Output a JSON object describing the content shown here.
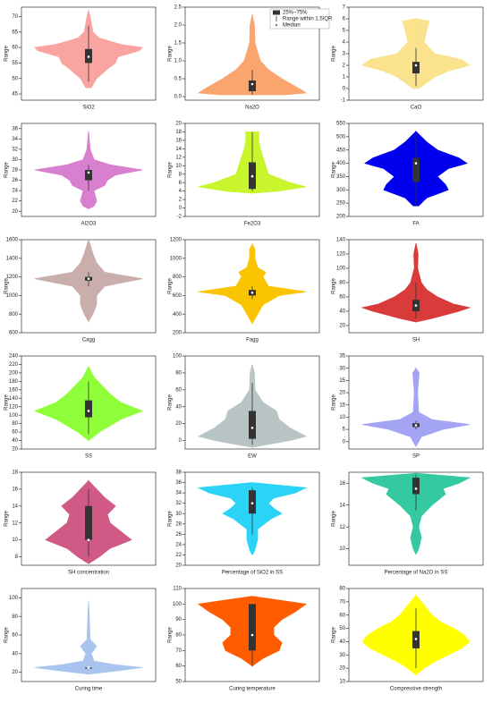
{
  "chart_data": [
    {
      "type": "violin",
      "x_label": "SiO2",
      "y_label": "Range",
      "color": "#f9a4a0",
      "ylim": [
        43,
        73
      ],
      "yticks": [
        45,
        50,
        55,
        60,
        65,
        70
      ],
      "box": {
        "q1": 55,
        "q3": 59.5,
        "median": 57,
        "whisker_low": 49,
        "whisker_high": 67
      },
      "density_y": [
        47,
        50,
        53,
        55,
        57,
        59,
        60,
        61,
        63,
        65,
        70,
        72
      ],
      "density": [
        0.05,
        0.15,
        0.35,
        0.5,
        0.55,
        0.95,
        1,
        0.6,
        0.2,
        0.08,
        0.03,
        0
      ]
    },
    {
      "type": "violin",
      "x_label": "Na2O",
      "y_label": "Range",
      "color": "#fba56e",
      "ylim": [
        -0.1,
        2.5
      ],
      "yticks": [
        {
          "value": 0,
          "label": "0.0"
        },
        0.5,
        {
          "value": 1,
          "label": "1.0"
        },
        1.5,
        {
          "value": 2,
          "label": "2.0"
        },
        2.5
      ],
      "box": {
        "q1": 0.15,
        "q3": 0.45,
        "median": 0.35,
        "whisker_low": 0.05,
        "whisker_high": 0.75
      },
      "density_y": [
        0.05,
        0.1,
        0.2,
        0.5,
        0.75,
        1,
        1.5,
        2,
        2.3
      ],
      "density": [
        0.6,
        1,
        0.9,
        0.55,
        0.3,
        0.15,
        0.05,
        0.04,
        0
      ],
      "legend": [
        "25%~75%",
        "Range within 1.5IQR",
        "Median"
      ]
    },
    {
      "type": "violin",
      "x_label": "CaO",
      "y_label": "Range",
      "color": "#fbe28c",
      "ylim": [
        -1,
        7
      ],
      "yticks": [
        -1,
        0,
        1,
        2,
        3,
        4,
        5,
        6,
        7
      ],
      "box": {
        "q1": 1.3,
        "q3": 2.3,
        "median": 2,
        "whisker_low": 0.2,
        "whisker_high": 3.5
      },
      "density_y": [
        0,
        0.5,
        1,
        1.5,
        2,
        2.5,
        3,
        4,
        5,
        5.8,
        6
      ],
      "density": [
        0.05,
        0.2,
        0.35,
        0.6,
        1,
        0.85,
        0.35,
        0.15,
        0.2,
        0.25,
        0
      ]
    },
    {
      "type": "violin",
      "x_label": "Al2O3",
      "y_label": "Range",
      "color": "#d97fd0",
      "ylim": [
        19,
        37
      ],
      "yticks": [
        20,
        22,
        24,
        26,
        28,
        30,
        32,
        34,
        36
      ],
      "box": {
        "q1": 26,
        "q3": 28,
        "median": 27.5,
        "whisker_low": 24,
        "whisker_high": 29
      },
      "density_y": [
        20.5,
        21,
        22,
        24,
        25,
        26,
        27,
        28,
        29,
        30,
        32,
        35.5
      ],
      "density": [
        0,
        0.1,
        0.15,
        0.1,
        0.3,
        0.35,
        0.5,
        1,
        0.4,
        0.1,
        0.03,
        0
      ]
    },
    {
      "type": "violin",
      "x_label": "Fe2O3",
      "y_label": "Range",
      "color": "#c8f52b",
      "ylim": [
        -2,
        20
      ],
      "yticks": [
        -2,
        0,
        2,
        4,
        6,
        8,
        10,
        12,
        14,
        16,
        18,
        20
      ],
      "box": {
        "q1": 4.5,
        "q3": 10.8,
        "median": 7.5,
        "whisker_low": 4,
        "whisker_high": 18
      },
      "density_y": [
        3.5,
        4,
        5,
        6,
        8,
        10,
        12,
        14,
        16,
        18
      ],
      "density": [
        0,
        0.5,
        1,
        0.7,
        0.3,
        0.25,
        0.2,
        0.15,
        0.12,
        0.12
      ]
    },
    {
      "type": "violin",
      "x_label": "FA",
      "y_label": "Range",
      "color": "#0000ee",
      "ylim": [
        200,
        550
      ],
      "yticks": [
        200,
        250,
        300,
        350,
        400,
        450,
        500,
        550
      ],
      "box": {
        "q1": 330,
        "q3": 420,
        "median": 400,
        "whisker_low": 240,
        "whisker_high": 510
      },
      "density_y": [
        240,
        270,
        300,
        320,
        350,
        380,
        400,
        420,
        450,
        480,
        510,
        520
      ],
      "density": [
        0.05,
        0.2,
        0.6,
        0.55,
        0.4,
        0.6,
        0.95,
        0.8,
        0.4,
        0.2,
        0.05,
        0
      ]
    },
    {
      "type": "violin",
      "x_label": "Cagg",
      "y_label": "Range",
      "color": "#c9aeab",
      "ylim": [
        600,
        1600
      ],
      "yticks": [
        600,
        800,
        1000,
        1200,
        1400,
        1600
      ],
      "box": {
        "q1": 1160,
        "q3": 1200,
        "median": 1180,
        "whisker_low": 1100,
        "whisker_high": 1250
      },
      "density_y": [
        720,
        800,
        900,
        1000,
        1100,
        1180,
        1250,
        1350,
        1450,
        1600
      ],
      "density": [
        0,
        0.08,
        0.15,
        0.15,
        0.3,
        1,
        0.3,
        0.15,
        0.08,
        0
      ]
    },
    {
      "type": "violin",
      "x_label": "Fagg",
      "y_label": "Range",
      "color": "#fbc400",
      "ylim": [
        200,
        1200
      ],
      "yticks": [
        200,
        400,
        600,
        800,
        1000,
        1200
      ],
      "box": {
        "q1": 600,
        "q3": 660,
        "median": 630,
        "whisker_low": 560,
        "whisker_high": 700
      },
      "density_y": [
        300,
        400,
        500,
        600,
        640,
        700,
        800,
        850,
        900,
        1000,
        1100,
        1150
      ],
      "density": [
        0,
        0.1,
        0.2,
        0.5,
        1,
        0.3,
        0.2,
        0.25,
        0.1,
        0.05,
        0.05,
        0
      ]
    },
    {
      "type": "violin",
      "x_label": "SH",
      "y_label": "Range",
      "color": "#d93b3b",
      "ylim": [
        10,
        140
      ],
      "yticks": [
        20,
        40,
        60,
        80,
        100,
        120,
        140
      ],
      "box": {
        "q1": 40,
        "q3": 56,
        "median": 48,
        "whisker_low": 30,
        "whisker_high": 80
      },
      "density_y": [
        25,
        30,
        40,
        45,
        50,
        60,
        70,
        80,
        100,
        120,
        135
      ],
      "density": [
        0,
        0.3,
        0.8,
        1,
        0.7,
        0.4,
        0.2,
        0.1,
        0.03,
        0.04,
        0
      ]
    },
    {
      "type": "violin",
      "x_label": "SS",
      "y_label": "Range",
      "color": "#8fff3a",
      "ylim": [
        20,
        240
      ],
      "yticks": [
        20,
        40,
        60,
        80,
        100,
        120,
        140,
        160,
        180,
        200,
        220,
        240
      ],
      "box": {
        "q1": 95,
        "q3": 135,
        "median": 110,
        "whisker_low": 55,
        "whisker_high": 180
      },
      "density_y": [
        40,
        60,
        90,
        110,
        130,
        150,
        170,
        190,
        215
      ],
      "density": [
        0,
        0.2,
        0.6,
        1,
        0.6,
        0.4,
        0.25,
        0.1,
        0
      ]
    },
    {
      "type": "violin",
      "x_label": "EW",
      "y_label": "Range",
      "color": "#b9c4c4",
      "ylim": [
        -10,
        100
      ],
      "yticks": [
        0,
        20,
        40,
        60,
        80,
        100
      ],
      "box": {
        "q1": 2,
        "q3": 35,
        "median": 15,
        "whisker_low": -5,
        "whisker_high": 68
      },
      "density_y": [
        -8,
        0,
        5,
        15,
        25,
        35,
        45,
        60,
        80,
        90
      ],
      "density": [
        0,
        0.7,
        1,
        0.7,
        0.5,
        0.45,
        0.2,
        0.05,
        0.04,
        0
      ]
    },
    {
      "type": "violin",
      "x_label": "SP",
      "y_label": "Range",
      "color": "#a4a4f4",
      "ylim": [
        -3,
        35
      ],
      "yticks": [
        0,
        5,
        10,
        15,
        20,
        25,
        30,
        35
      ],
      "box": {
        "q1": 6,
        "q3": 7.5,
        "median": 6.7,
        "whisker_low": 5,
        "whisker_high": 8.5
      },
      "density_y": [
        -2,
        2,
        5,
        7,
        9,
        12,
        20,
        28,
        30
      ],
      "density": [
        0,
        0.1,
        0.5,
        1,
        0.3,
        0.05,
        0.03,
        0.06,
        0
      ]
    },
    {
      "type": "violin",
      "x_label": "SH concentration",
      "y_label": "Range",
      "color": "#d05a85",
      "ylim": [
        7,
        18
      ],
      "yticks": [
        8,
        10,
        12,
        14,
        16,
        18
      ],
      "box": {
        "q1": 10,
        "q3": 14,
        "median": 10,
        "whisker_low": 8,
        "whisker_high": 16
      },
      "density_y": [
        7.2,
        8,
        9,
        10,
        11,
        12,
        13,
        14,
        15,
        16,
        17
      ],
      "density": [
        0,
        0.2,
        0.4,
        0.8,
        0.6,
        0.4,
        0.35,
        0.5,
        0.3,
        0.15,
        0
      ]
    },
    {
      "type": "violin",
      "x_label": "Percentage of SiO2 in SS",
      "y_label": "Range",
      "color": "#2bd4f7",
      "ylim": [
        20,
        38
      ],
      "yticks": [
        20,
        22,
        24,
        26,
        28,
        30,
        32,
        34,
        36,
        38
      ],
      "box": {
        "q1": 30,
        "q3": 34.5,
        "median": 32,
        "whisker_low": 26,
        "whisker_high": 35
      },
      "density_y": [
        22,
        23,
        25,
        27,
        29,
        30,
        31,
        32,
        33,
        34,
        35,
        36
      ],
      "density": [
        0,
        0.05,
        0.1,
        0.1,
        0.35,
        0.55,
        0.4,
        0.3,
        0.4,
        0.8,
        1,
        0
      ]
    },
    {
      "type": "violin",
      "x_label": "Percentage of Na2O in SS",
      "y_label": "Range",
      "color": "#34c9a0",
      "ylim": [
        8.5,
        17
      ],
      "yticks": [
        10,
        12,
        14,
        16
      ],
      "box": {
        "q1": 15,
        "q3": 16.5,
        "median": 15.5,
        "whisker_low": 13.5,
        "whisker_high": 16.8
      },
      "density_y": [
        9.5,
        10,
        11,
        12,
        13,
        14,
        15,
        15.5,
        16,
        16.5,
        16.9
      ],
      "density": [
        0,
        0.05,
        0.1,
        0.05,
        0.1,
        0.3,
        0.55,
        0.5,
        0.8,
        1,
        0
      ]
    },
    {
      "type": "violin",
      "x_label": "Curing time",
      "y_label": "Range",
      "color": "#a8c4ef",
      "ylim": [
        10,
        110
      ],
      "yticks": [
        20,
        40,
        60,
        80,
        100
      ],
      "box": {
        "q1": 24,
        "q3": 25,
        "median": 25,
        "whisker_low": 24,
        "whisker_high": 25
      },
      "density_y": [
        18,
        22,
        25,
        28,
        32,
        40,
        48,
        55,
        70,
        97
      ],
      "density": [
        0,
        0.6,
        1,
        0.5,
        0.1,
        0.05,
        0.15,
        0.03,
        0.02,
        0
      ]
    },
    {
      "type": "violin",
      "x_label": "Curing temperature",
      "y_label": "Range",
      "color": "#ff5c00",
      "ylim": [
        50,
        110
      ],
      "yticks": [
        50,
        60,
        70,
        80,
        90,
        100,
        110
      ],
      "box": {
        "q1": 70,
        "q3": 100,
        "median": 80,
        "whisker_low": 60,
        "whisker_high": 100
      },
      "density_y": [
        60,
        65,
        70,
        75,
        80,
        85,
        90,
        95,
        100,
        105
      ],
      "density": [
        0,
        0.2,
        0.5,
        0.55,
        0.4,
        0.4,
        0.55,
        0.8,
        1,
        0
      ]
    },
    {
      "type": "violin",
      "x_label": "Compressive strength",
      "y_label": "Range",
      "color": "#ffff00",
      "ylim": [
        10,
        80
      ],
      "yticks": [
        10,
        20,
        30,
        40,
        50,
        60,
        70,
        80
      ],
      "box": {
        "q1": 35,
        "q3": 48,
        "median": 42,
        "whisker_low": 20,
        "whisker_high": 65
      },
      "density_y": [
        15,
        20,
        25,
        30,
        35,
        40,
        45,
        50,
        55,
        60,
        65,
        70,
        75
      ],
      "density": [
        0,
        0.15,
        0.35,
        0.6,
        0.85,
        1,
        0.9,
        0.7,
        0.45,
        0.3,
        0.2,
        0.1,
        0
      ]
    }
  ]
}
